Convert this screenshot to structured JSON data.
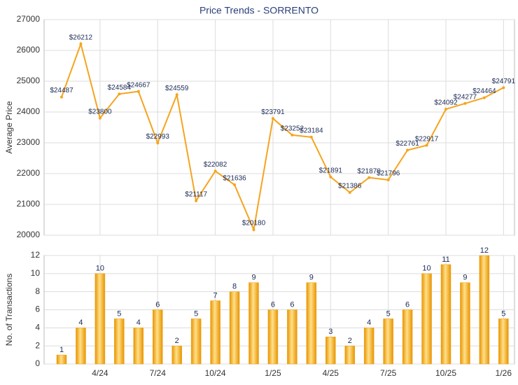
{
  "chart_data": [
    {
      "type": "line",
      "title": "Price Trends - SORRENTO",
      "y_label": "Average Price",
      "color": "#f5a41e",
      "values": [
        24487,
        26212,
        23800,
        24584,
        24667,
        22993,
        24559,
        21117,
        22082,
        21636,
        20180,
        23791,
        23252,
        23184,
        21891,
        21386,
        21870,
        21796,
        22761,
        22917,
        24092,
        24277,
        24464,
        24791
      ],
      "value_labels": [
        "$24487",
        "$26212",
        "$23800",
        "$24584",
        "$24667",
        "$22993",
        "$24559",
        "$21117",
        "$22082",
        "$21636",
        "$20180",
        "$23791",
        "$23252",
        "$23184",
        "$21891",
        "$21386",
        "$21870",
        "$21796",
        "$22761",
        "$22917",
        "$24092",
        "$24277",
        "$24464",
        "$24791"
      ],
      "ylim": [
        20000,
        27000
      ],
      "yticks": [
        20000,
        21000,
        22000,
        23000,
        24000,
        25000,
        26000,
        27000
      ],
      "grid": true
    },
    {
      "type": "bar",
      "y_label": "No. of Transactions",
      "color": "#f0a010",
      "categories": [
        null,
        null,
        "4/24",
        null,
        null,
        "7/24",
        null,
        null,
        "10/24",
        null,
        null,
        "1/25",
        null,
        null,
        "4/25",
        null,
        null,
        "7/25",
        null,
        null,
        "10/25",
        null,
        null,
        "1/26"
      ],
      "values": [
        1,
        4,
        10,
        5,
        4,
        6,
        2,
        5,
        7,
        8,
        9,
        6,
        6,
        9,
        3,
        2,
        4,
        5,
        6,
        10,
        11,
        9,
        12,
        5
      ],
      "ylim": [
        0,
        12
      ],
      "yticks": [
        0,
        2,
        4,
        6,
        8,
        10,
        12
      ],
      "grid": true
    }
  ]
}
